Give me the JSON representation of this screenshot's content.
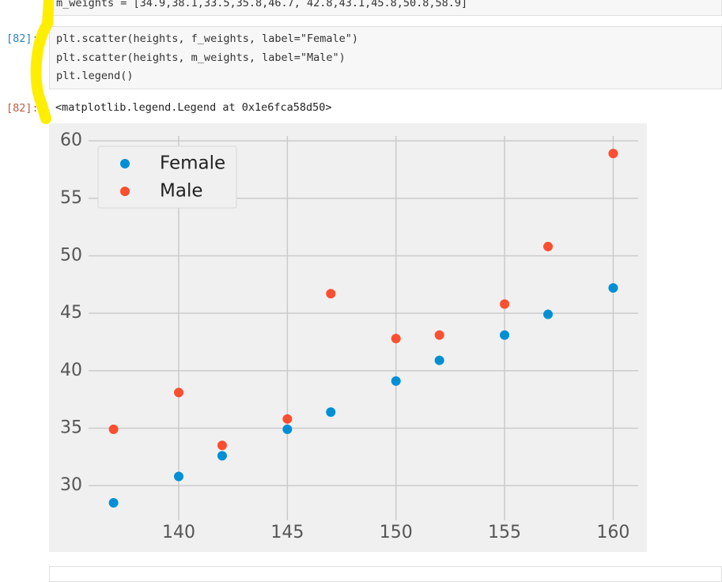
{
  "cells": [
    {
      "lines": [
        "m_weights = [34.9,38.1,33.5,35.8,46.7, 42.8,43.1,45.8,50.8,58.9]"
      ]
    },
    {
      "prompt": "[82]:",
      "lines": [
        "plt.scatter(heights, f_weights, label=\"Female\")",
        "plt.scatter(heights, m_weights, label=\"Male\")",
        "plt.legend()"
      ]
    },
    {
      "prompt": "[82]:",
      "output": "<matplotlib.legend.Legend at 0x1e6fca58d50>"
    }
  ],
  "chart_data": {
    "type": "scatter",
    "x": [
      137,
      140,
      142,
      145,
      147,
      150,
      152,
      155,
      157,
      160
    ],
    "series": [
      {
        "name": "Female",
        "color": "#008fd5",
        "values": [
          28.5,
          30.8,
          32.6,
          34.9,
          36.4,
          39.1,
          40.9,
          43.1,
          44.9,
          47.2
        ]
      },
      {
        "name": "Male",
        "color": "#fc4f30",
        "values": [
          34.9,
          38.1,
          33.5,
          35.8,
          46.7,
          42.8,
          43.1,
          45.8,
          50.8,
          58.9
        ]
      }
    ],
    "xlim": [
      135.85,
      161.15
    ],
    "ylim": [
      26.98,
      60.42
    ],
    "xticks": [
      140,
      145,
      150,
      155,
      160
    ],
    "yticks": [
      30,
      35,
      40,
      45,
      50,
      55,
      60
    ],
    "grid": true,
    "legend": "upper-left"
  }
}
